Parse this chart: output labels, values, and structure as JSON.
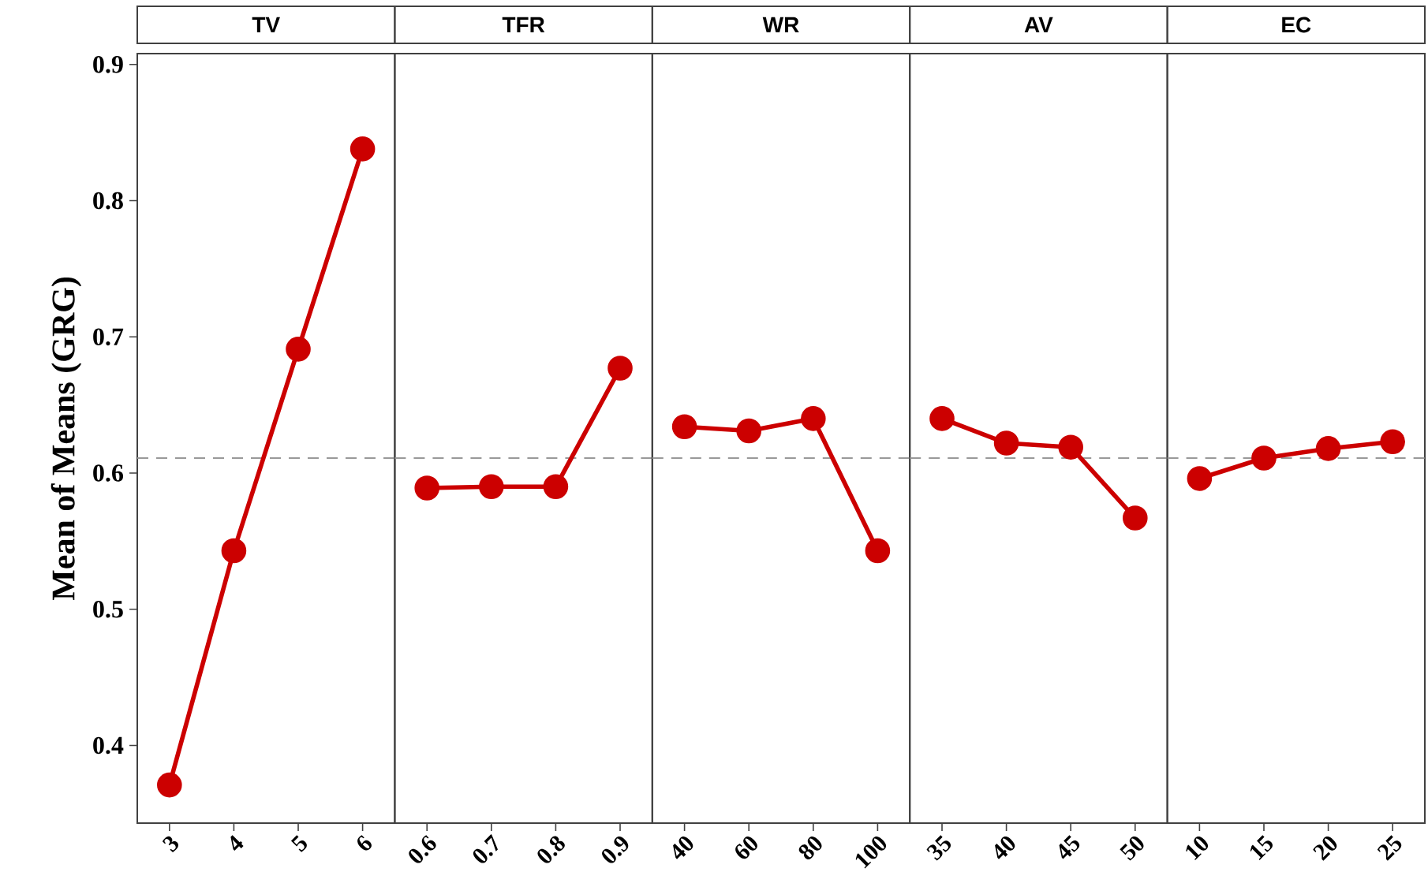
{
  "chart_data": [
    {
      "type": "line",
      "title": "TV",
      "ylabel": "Mean of Means (GRG)",
      "categories": [
        "3",
        "4",
        "5",
        "6"
      ],
      "values": [
        0.371,
        0.543,
        0.691,
        0.838
      ],
      "color": "#cc0000",
      "marker": "circle",
      "line_style": "solid",
      "ylim": [
        0.343,
        0.908
      ],
      "yticks": [
        0.4,
        0.5,
        0.6,
        0.7,
        0.8,
        0.9
      ],
      "ref_lines": [
        {
          "axis": "y",
          "value": 0.611,
          "color": "#999999",
          "line_style": "dashed"
        }
      ]
    },
    {
      "type": "line",
      "title": "TFR",
      "categories": [
        "0.6",
        "0.7",
        "0.8",
        "0.9"
      ],
      "values": [
        0.589,
        0.59,
        0.59,
        0.677
      ],
      "color": "#cc0000",
      "marker": "circle",
      "line_style": "solid",
      "ylim": [
        0.343,
        0.908
      ],
      "tick_labels": "x",
      "ref_lines": [
        {
          "axis": "y",
          "value": 0.611,
          "color": "#999999",
          "line_style": "dashed"
        }
      ]
    },
    {
      "type": "line",
      "title": "WR",
      "categories": [
        "40",
        "60",
        "80",
        "100"
      ],
      "values": [
        0.634,
        0.631,
        0.64,
        0.543
      ],
      "color": "#cc0000",
      "marker": "circle",
      "line_style": "solid",
      "ylim": [
        0.343,
        0.908
      ],
      "tick_labels": "x",
      "ref_lines": [
        {
          "axis": "y",
          "value": 0.611,
          "color": "#999999",
          "line_style": "dashed"
        }
      ]
    },
    {
      "type": "line",
      "title": "AV",
      "categories": [
        "35",
        "40",
        "45",
        "50"
      ],
      "values": [
        0.64,
        0.622,
        0.619,
        0.567
      ],
      "color": "#cc0000",
      "marker": "circle",
      "line_style": "solid",
      "ylim": [
        0.343,
        0.908
      ],
      "tick_labels": "x",
      "ref_lines": [
        {
          "axis": "y",
          "value": 0.611,
          "color": "#999999",
          "line_style": "dashed"
        }
      ]
    },
    {
      "type": "line",
      "title": "EC",
      "categories": [
        "10",
        "15",
        "20",
        "25"
      ],
      "values": [
        0.596,
        0.611,
        0.618,
        0.623
      ],
      "color": "#cc0000",
      "marker": "circle",
      "line_style": "solid",
      "ylim": [
        0.343,
        0.908
      ],
      "tick_labels": "x",
      "ref_lines": [
        {
          "axis": "y",
          "value": 0.611,
          "color": "#999999",
          "line_style": "dashed"
        }
      ]
    }
  ]
}
